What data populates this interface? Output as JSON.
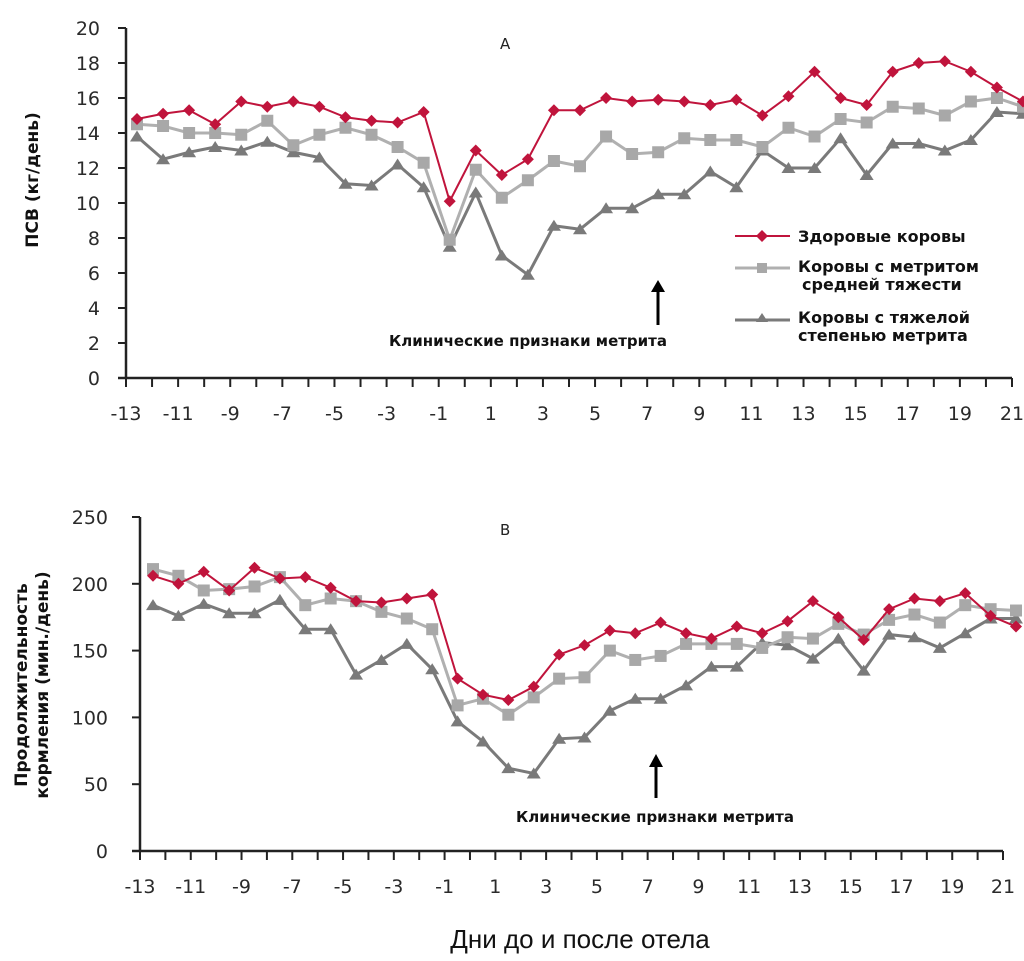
{
  "chart_data": [
    {
      "type": "line",
      "panel": "A",
      "ylabel": "ПСВ (кг/день)",
      "ylim": [
        0,
        20
      ],
      "yticks": [
        0,
        2,
        4,
        6,
        8,
        10,
        12,
        14,
        16,
        18,
        20
      ],
      "xlim": [
        -13,
        21
      ],
      "xtick_labels": [
        -13,
        -11,
        -9,
        -7,
        -5,
        -3,
        -1,
        1,
        3,
        5,
        7,
        9,
        11,
        13,
        15,
        17,
        19,
        21
      ],
      "x": [
        -13,
        -12,
        -11,
        -10,
        -9,
        -8,
        -7,
        -6,
        -5,
        -4,
        -3,
        -2,
        -1,
        0,
        1,
        2,
        3,
        4,
        5,
        6,
        7,
        8,
        9,
        10,
        11,
        12,
        13,
        14,
        15,
        16,
        17,
        18,
        19,
        20,
        21
      ],
      "annotation": "Клинические признаки метрита",
      "annotation_day": 8,
      "legend_position": "right",
      "series": [
        {
          "name": "Здоровые коровы",
          "color": "#c0143c",
          "marker": "diamond",
          "values": [
            14.8,
            15.1,
            15.3,
            14.5,
            15.8,
            15.5,
            15.8,
            15.5,
            14.9,
            14.7,
            14.6,
            15.2,
            10.1,
            13.0,
            11.6,
            12.5,
            15.3,
            15.3,
            16.0,
            15.8,
            15.9,
            15.8,
            15.6,
            15.9,
            15.0,
            16.1,
            17.5,
            16.0,
            15.6,
            17.5,
            18.0,
            18.1,
            17.5,
            16.6,
            15.8
          ]
        },
        {
          "name": "Коровы с метритом средней тяжести",
          "color": "#b0b0b0",
          "marker": "square",
          "values": [
            14.5,
            14.4,
            14.0,
            14.0,
            13.9,
            14.7,
            13.3,
            13.9,
            14.3,
            13.9,
            13.2,
            12.3,
            7.9,
            11.9,
            10.3,
            11.3,
            12.4,
            12.1,
            13.8,
            12.8,
            12.9,
            13.7,
            13.6,
            13.6,
            13.2,
            14.3,
            13.8,
            14.8,
            14.6,
            15.5,
            15.4,
            15.0,
            15.8,
            16.0,
            15.5
          ]
        },
        {
          "name": "Коровы с тяжелой степенью метрита",
          "color": "#7a7a7a",
          "marker": "triangle",
          "values": [
            13.8,
            12.5,
            12.9,
            13.2,
            13.0,
            13.5,
            12.9,
            12.6,
            11.1,
            11.0,
            12.2,
            10.9,
            7.5,
            10.6,
            7.0,
            5.9,
            8.7,
            8.5,
            9.7,
            9.7,
            10.5,
            10.5,
            11.8,
            10.9,
            13.0,
            12.0,
            12.0,
            13.7,
            11.6,
            13.4,
            13.4,
            13.0,
            13.6,
            15.2,
            15.1
          ]
        }
      ]
    },
    {
      "type": "line",
      "panel": "B",
      "ylabel_line1": "Продолжительность",
      "ylabel_line2": "кормления (мин./день)",
      "ylim": [
        0,
        250
      ],
      "yticks": [
        0,
        50,
        100,
        150,
        200,
        250
      ],
      "xlim": [
        -13,
        21
      ],
      "xtick_labels": [
        -13,
        -11,
        -9,
        -7,
        -5,
        -3,
        -1,
        1,
        3,
        5,
        7,
        9,
        11,
        13,
        15,
        17,
        19,
        21
      ],
      "x": [
        -13,
        -12,
        -11,
        -10,
        -9,
        -8,
        -7,
        -6,
        -5,
        -4,
        -3,
        -2,
        -1,
        0,
        1,
        2,
        3,
        4,
        5,
        6,
        7,
        8,
        9,
        10,
        11,
        12,
        13,
        14,
        15,
        16,
        17,
        18,
        19,
        20,
        21
      ],
      "annotation": "Клинические признаки метрита",
      "annotation_day": 7,
      "xlabel": "Дни до и после отела",
      "series": [
        {
          "name": "Здоровые коровы",
          "color": "#c0143c",
          "marker": "diamond",
          "values": [
            206,
            200,
            209,
            195,
            212,
            204,
            205,
            197,
            187,
            186,
            189,
            192,
            129,
            117,
            113,
            123,
            147,
            154,
            165,
            163,
            171,
            163,
            159,
            168,
            163,
            172,
            187,
            175,
            158,
            181,
            189,
            187,
            193,
            176,
            168
          ]
        },
        {
          "name": "Коровы с метритом средней тяжести",
          "color": "#b0b0b0",
          "marker": "square",
          "values": [
            211,
            206,
            195,
            196,
            198,
            205,
            184,
            189,
            187,
            179,
            174,
            166,
            109,
            114,
            102,
            115,
            129,
            130,
            150,
            143,
            146,
            155,
            155,
            155,
            152,
            160,
            159,
            170,
            162,
            173,
            177,
            171,
            184,
            181,
            180
          ]
        },
        {
          "name": "Коровы с тяжелой степенью метрита",
          "color": "#7a7a7a",
          "marker": "triangle",
          "values": [
            184,
            176,
            185,
            178,
            178,
            188,
            166,
            166,
            132,
            143,
            155,
            136,
            97,
            82,
            62,
            58,
            84,
            85,
            105,
            114,
            114,
            124,
            138,
            138,
            156,
            154,
            144,
            159,
            135,
            162,
            160,
            152,
            163,
            174,
            174
          ]
        }
      ]
    }
  ],
  "legend": {
    "items": [
      {
        "line1": "Здоровые коровы",
        "line2": ""
      },
      {
        "line1": "Коровы с метритом",
        "line2": "средней тяжести"
      },
      {
        "line1": "Коровы с тяжелой",
        "line2": "степенью метрита"
      }
    ]
  },
  "xlabel": "Дни до и после отела"
}
